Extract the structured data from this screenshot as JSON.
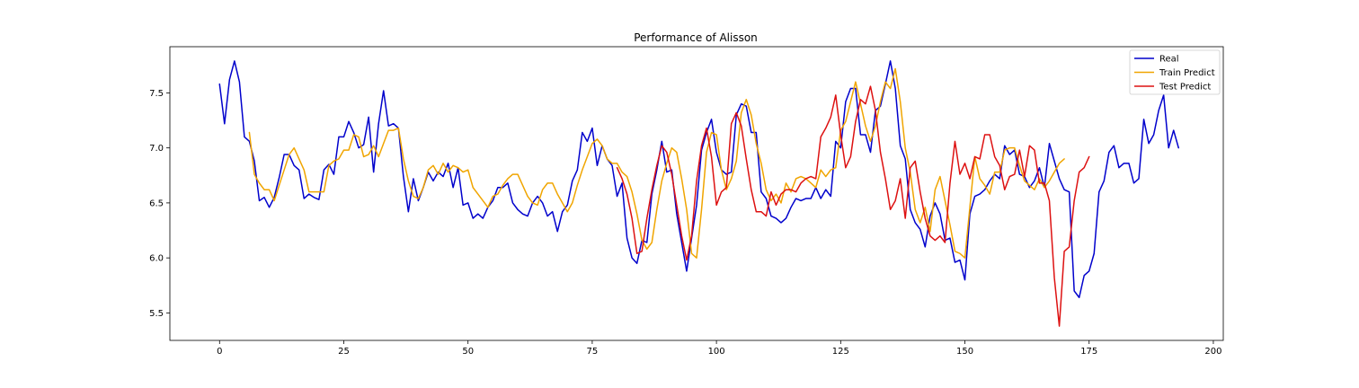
{
  "chart_data": {
    "type": "line",
    "title": "Performance of Alisson",
    "xlabel": "",
    "ylabel": "",
    "xlim": [
      -10,
      202
    ],
    "ylim": [
      5.25,
      7.92
    ],
    "xticks": [
      0,
      25,
      50,
      75,
      100,
      125,
      150,
      175,
      200
    ],
    "yticks": [
      5.5,
      6.0,
      6.5,
      7.0,
      7.5
    ],
    "ytick_labels": [
      "5.5",
      "6.0",
      "6.5",
      "7.0",
      "7.5"
    ],
    "grid": false,
    "legend_position": "top-right",
    "series": [
      {
        "name": "Real",
        "color": "#0000cc",
        "x_start": 0,
        "values": [
          7.58,
          7.22,
          7.62,
          7.79,
          7.6,
          7.1,
          7.06,
          6.88,
          6.52,
          6.55,
          6.46,
          6.55,
          6.73,
          6.94,
          6.94,
          6.84,
          6.8,
          6.54,
          6.58,
          6.55,
          6.53,
          6.8,
          6.85,
          6.76,
          7.1,
          7.1,
          7.24,
          7.14,
          7.0,
          7.03,
          7.28,
          6.78,
          7.22,
          7.52,
          7.2,
          7.22,
          7.18,
          6.74,
          6.42,
          6.72,
          6.52,
          6.64,
          6.78,
          6.7,
          6.78,
          6.74,
          6.86,
          6.64,
          6.82,
          6.48,
          6.5,
          6.36,
          6.4,
          6.36,
          6.46,
          6.52,
          6.64,
          6.64,
          6.68,
          6.5,
          6.44,
          6.4,
          6.38,
          6.5,
          6.56,
          6.5,
          6.38,
          6.42,
          6.24,
          6.42,
          6.48,
          6.7,
          6.8,
          7.14,
          7.06,
          7.18,
          6.84,
          7.02,
          6.9,
          6.84,
          6.56,
          6.68,
          6.18,
          6.0,
          5.95,
          6.16,
          6.14,
          6.58,
          6.8,
          7.06,
          6.78,
          6.8,
          6.4,
          6.14,
          5.88,
          6.18,
          6.48,
          6.98,
          7.14,
          7.26,
          6.96,
          6.8,
          6.76,
          6.78,
          7.3,
          7.4,
          7.38,
          7.14,
          7.14,
          6.6,
          6.54,
          6.38,
          6.36,
          6.32,
          6.36,
          6.46,
          6.54,
          6.52,
          6.54,
          6.54,
          6.64,
          6.54,
          6.62,
          6.56,
          7.06,
          7.0,
          7.42,
          7.54,
          7.54,
          7.12,
          7.12,
          6.96,
          7.34,
          7.38,
          7.58,
          7.79,
          7.54,
          7.02,
          6.9,
          6.44,
          6.32,
          6.26,
          6.1,
          6.38,
          6.5,
          6.4,
          6.16,
          6.18,
          5.96,
          5.98,
          5.8,
          6.4,
          6.56,
          6.58,
          6.62,
          6.7,
          6.76,
          6.72,
          7.02,
          6.94,
          6.98,
          6.76,
          6.74,
          6.64,
          6.7,
          6.82,
          6.64,
          7.04,
          6.88,
          6.72,
          6.62,
          6.6,
          5.7,
          5.64,
          5.84,
          5.88,
          6.04,
          6.6,
          6.7,
          6.96,
          7.02,
          6.82,
          6.86,
          6.86,
          6.68,
          6.72,
          7.26,
          7.04,
          7.12,
          7.34,
          7.48,
          7.0,
          7.16,
          7.0
        ]
      },
      {
        "name": "Train Predict",
        "color": "#f0a500",
        "x_start": 6,
        "values": [
          7.14,
          6.76,
          6.68,
          6.62,
          6.62,
          6.52,
          6.66,
          6.8,
          6.94,
          7.0,
          6.9,
          6.8,
          6.6,
          6.6,
          6.6,
          6.6,
          6.84,
          6.88,
          6.9,
          6.98,
          6.98,
          7.12,
          7.1,
          6.92,
          6.94,
          7.02,
          6.92,
          7.04,
          7.16,
          7.16,
          7.18,
          6.9,
          6.7,
          6.56,
          6.54,
          6.64,
          6.8,
          6.84,
          6.76,
          6.86,
          6.78,
          6.84,
          6.82,
          6.78,
          6.8,
          6.64,
          6.58,
          6.52,
          6.46,
          6.56,
          6.58,
          6.66,
          6.72,
          6.76,
          6.76,
          6.66,
          6.56,
          6.5,
          6.48,
          6.62,
          6.68,
          6.68,
          6.58,
          6.5,
          6.42,
          6.5,
          6.66,
          6.8,
          6.92,
          7.04,
          7.08,
          7.02,
          6.9,
          6.86,
          6.86,
          6.78,
          6.74,
          6.6,
          6.4,
          6.16,
          6.08,
          6.14,
          6.44,
          6.7,
          6.86,
          7.0,
          6.96,
          6.72,
          6.44,
          6.04,
          6.0,
          6.44,
          6.96,
          7.14,
          7.12,
          6.8,
          6.62,
          6.72,
          6.88,
          7.32,
          7.44,
          7.3,
          7.04,
          6.86,
          6.62,
          6.52,
          6.58,
          6.5,
          6.68,
          6.6,
          6.72,
          6.74,
          6.72,
          6.68,
          6.64,
          6.8,
          6.74,
          6.8,
          6.82,
          7.16,
          7.24,
          7.42,
          7.6,
          7.4,
          7.2,
          7.06,
          7.2,
          7.42,
          7.6,
          7.54,
          7.72,
          7.42,
          7.0,
          6.78,
          6.44,
          6.32,
          6.46,
          6.24,
          6.62,
          6.74,
          6.52,
          6.3,
          6.06,
          6.04,
          6.0,
          6.46,
          6.92,
          6.72,
          6.66,
          6.58,
          6.78,
          6.78,
          6.98,
          7.0,
          7.0,
          6.84,
          6.7,
          6.66,
          6.62,
          6.72,
          6.64,
          6.7,
          6.78,
          6.86,
          6.9
        ]
      },
      {
        "name": "Test Predict",
        "color": "#dd1111",
        "x_start": 80,
        "values": [
          6.82,
          6.72,
          6.58,
          6.36,
          6.04,
          6.06,
          6.36,
          6.62,
          6.84,
          7.02,
          6.96,
          6.76,
          6.48,
          6.2,
          5.98,
          6.2,
          6.7,
          7.02,
          7.18,
          6.92,
          6.48,
          6.6,
          6.64,
          7.22,
          7.32,
          7.2,
          6.9,
          6.62,
          6.42,
          6.42,
          6.38,
          6.6,
          6.48,
          6.58,
          6.62,
          6.62,
          6.6,
          6.68,
          6.72,
          6.74,
          6.72,
          7.1,
          7.18,
          7.28,
          7.48,
          7.12,
          6.82,
          6.92,
          7.24,
          7.44,
          7.4,
          7.56,
          7.34,
          6.96,
          6.72,
          6.44,
          6.52,
          6.72,
          6.36,
          6.82,
          6.88,
          6.6,
          6.36,
          6.2,
          6.16,
          6.2,
          6.14,
          6.68,
          7.06,
          6.76,
          6.86,
          6.72,
          6.92,
          6.9,
          7.12,
          7.12,
          6.92,
          6.84,
          6.62,
          6.74,
          6.76,
          6.98,
          6.74,
          7.02,
          6.98,
          6.68,
          6.68,
          6.52,
          5.82,
          5.38,
          6.06,
          6.1,
          6.52,
          6.78,
          6.82,
          6.92
        ]
      }
    ]
  }
}
